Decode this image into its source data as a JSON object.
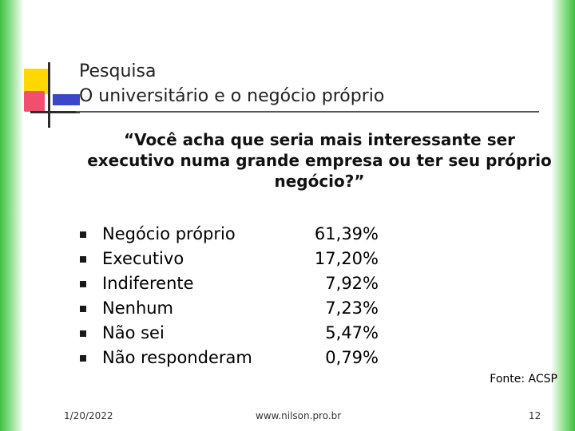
{
  "slide": {
    "title_line1": "Pesquisa",
    "title_line2": "O universitário e o negócio próprio",
    "question": "“Você acha que seria mais interessante ser executivo numa grande empresa ou ter seu próprio negócio?”",
    "items": [
      {
        "label": "Negócio próprio",
        "value": "61,39%"
      },
      {
        "label": "Executivo",
        "value": "17,20%"
      },
      {
        "label": "Indiferente",
        "value": "7,92%"
      },
      {
        "label": "Nenhum",
        "value": "7,23%"
      },
      {
        "label": "Não sei",
        "value": "5,47%"
      },
      {
        "label": "Não responderam",
        "value": "0,79%"
      }
    ],
    "source": "Fonte: ACSP"
  },
  "footer": {
    "date": "1/20/2022",
    "website": "www.nilson.pro.br",
    "page_number": "12"
  },
  "colors": {
    "edge_green": "#3fbf3f",
    "logo_yellow": "#ffd800",
    "logo_red": "#f0506e",
    "logo_blue": "#3b46c8"
  }
}
